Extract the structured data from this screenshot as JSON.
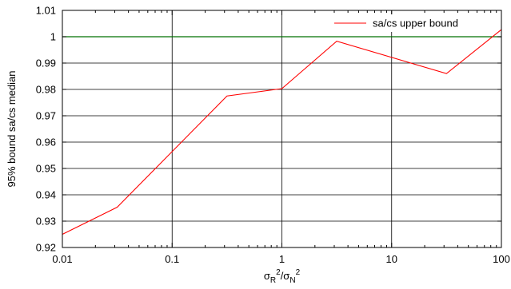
{
  "chart_data": {
    "type": "line",
    "xscale": "log",
    "xlim": [
      0.01,
      100
    ],
    "ylim": [
      0.92,
      1.01
    ],
    "xticks": [
      "0.01",
      "0.1",
      "1",
      "10",
      "100"
    ],
    "xtick_values": [
      0.01,
      0.1,
      1,
      10,
      100
    ],
    "yticks": [
      "0.92",
      "0.93",
      "0.94",
      "0.95",
      "0.96",
      "0.97",
      "0.98",
      "0.99",
      "1",
      "1.01"
    ],
    "ytick_values": [
      0.92,
      0.93,
      0.94,
      0.95,
      0.96,
      0.97,
      0.98,
      0.99,
      1,
      1.01
    ],
    "xlabel_base1": "σ",
    "xlabel_sub1": "R",
    "xlabel_sup1": "2",
    "xlabel_slash": "/σ",
    "xlabel_sub2": "N",
    "xlabel_sup2": "2",
    "ylabel": "95% bound sa/cs median",
    "grid": true,
    "legend_position": "top-right",
    "series": [
      {
        "name": "sa/cs upper bound",
        "color": "#ff0000",
        "x": [
          0.01,
          0.0316,
          0.316,
          1,
          3.16,
          31.6,
          100
        ],
        "y": [
          0.925,
          0.9353,
          0.9775,
          0.9803,
          0.9983,
          0.986,
          1.0027
        ]
      }
    ],
    "reference_line": {
      "y": 1,
      "color": "#007000"
    }
  }
}
